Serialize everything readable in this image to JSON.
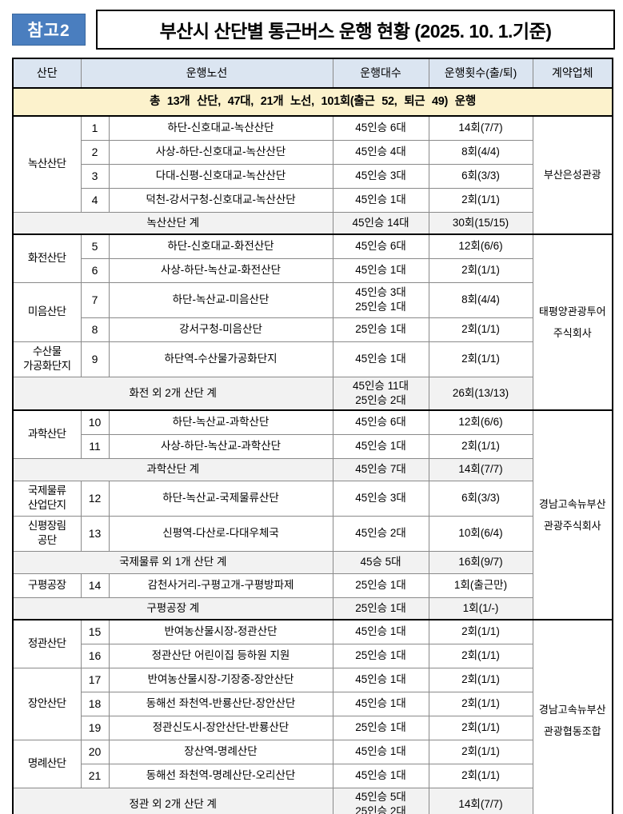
{
  "badge": "참고2",
  "title": "부산시 산단별 통근버스 운행 현황 (2025. 10. 1.기준)",
  "colors": {
    "badge_bg": "#4a7ebf",
    "header_bg": "#dbe5f1",
    "summary_bg": "#fcf2cc",
    "subtotal_bg": "#f2f2f2"
  },
  "table": {
    "headers": [
      "산단",
      "운행노선",
      "운행대수",
      "운행횟수(출/퇴)",
      "계약업체"
    ],
    "summary": "총 13개 산단, 47대, 21개 노선, 101회(출근 52, 퇴근 49) 운행",
    "contract_groups": [
      {
        "contractor": "부산은성관광",
        "blocks": [
          {
            "section": "녹산산단",
            "routes": [
              {
                "no": "1",
                "route": "하단-신호대교-녹산산단",
                "buses": "45인승 6대",
                "trips": "14회(7/7)"
              },
              {
                "no": "2",
                "route": "사상-하단-신호대교-녹산산단",
                "buses": "45인승 4대",
                "trips": "8회(4/4)"
              },
              {
                "no": "3",
                "route": "다대-신평-신호대교-녹산산단",
                "buses": "45인승 3대",
                "trips": "6회(3/3)"
              },
              {
                "no": "4",
                "route": "덕천-강서구청-신호대교-녹산산단",
                "buses": "45인승 1대",
                "trips": "2회(1/1)"
              }
            ]
          },
          {
            "subtotal": {
              "label": "녹산산단 계",
              "buses": "45인승 14대",
              "trips": "30회(15/15)"
            }
          }
        ]
      },
      {
        "contractor": "태평양관광투어\n주식회사",
        "blocks": [
          {
            "section": "화전산단",
            "routes": [
              {
                "no": "5",
                "route": "하단-신호대교-화전산단",
                "buses": "45인승 6대",
                "trips": "12회(6/6)"
              },
              {
                "no": "6",
                "route": "사상-하단-녹산교-화전산단",
                "buses": "45인승 1대",
                "trips": "2회(1/1)"
              }
            ]
          },
          {
            "section": "미음산단",
            "routes": [
              {
                "no": "7",
                "route": "하단-녹산교-미음산단",
                "buses": "45인승 3대\n25인승 1대",
                "trips": "8회(4/4)"
              },
              {
                "no": "8",
                "route": "강서구청-미음산단",
                "buses": "25인승 1대",
                "trips": "2회(1/1)"
              }
            ]
          },
          {
            "section": "수산물\n가공화단지",
            "routes": [
              {
                "no": "9",
                "route": "하단역-수산물가공화단지",
                "buses": "45인승 1대",
                "trips": "2회(1/1)"
              }
            ]
          },
          {
            "subtotal": {
              "label": "화전 외 2개 산단 계",
              "buses": "45인승 11대\n25인승 2대",
              "trips": "26회(13/13)"
            }
          }
        ]
      },
      {
        "contractor": "경남고속뉴부산\n관광주식회사",
        "blocks": [
          {
            "section": "과학산단",
            "routes": [
              {
                "no": "10",
                "route": "하단-녹산교-과학산단",
                "buses": "45인승 6대",
                "trips": "12회(6/6)"
              },
              {
                "no": "11",
                "route": "사상-하단-녹산교-과학산단",
                "buses": "45인승 1대",
                "trips": "2회(1/1)"
              }
            ]
          },
          {
            "subtotal": {
              "label": "과학산단 계",
              "buses": "45인승 7대",
              "trips": "14회(7/7)"
            }
          },
          {
            "section": "국제물류\n산업단지",
            "routes": [
              {
                "no": "12",
                "route": "하단-녹산교-국제물류산단",
                "buses": "45인승 3대",
                "trips": "6회(3/3)"
              }
            ]
          },
          {
            "section": "신평장림\n공단",
            "routes": [
              {
                "no": "13",
                "route": "신평역-다산로-다대우체국",
                "buses": "45인승 2대",
                "trips": "10회(6/4)"
              }
            ]
          },
          {
            "subtotal": {
              "label": "국제물류 외 1개 산단 계",
              "buses": "45승 5대",
              "trips": "16회(9/7)"
            }
          },
          {
            "section": "구평공장",
            "routes": [
              {
                "no": "14",
                "route": "감천사거리-구평고개-구평방파제",
                "buses": "25인승 1대",
                "trips": "1회(출근만)"
              }
            ]
          },
          {
            "subtotal": {
              "label": "구평공장 계",
              "buses": "25인승 1대",
              "trips": "1회(1/-)"
            }
          }
        ]
      },
      {
        "contractor": "경남고속뉴부산\n관광협동조합",
        "blocks": [
          {
            "section": "정관산단",
            "routes": [
              {
                "no": "15",
                "route": "반여농산물시장-정관산단",
                "buses": "45인승 1대",
                "trips": "2회(1/1)"
              },
              {
                "no": "16",
                "route": "정관산단 어린이집 등하원 지원",
                "buses": "25인승 1대",
                "trips": "2회(1/1)"
              }
            ]
          },
          {
            "section": "장안산단",
            "routes": [
              {
                "no": "17",
                "route": "반여농산물시장-기장중-장안산단",
                "buses": "45인승 1대",
                "trips": "2회(1/1)"
              },
              {
                "no": "18",
                "route": "동해선 좌천역-반룡산단-장안산단",
                "buses": "45인승 1대",
                "trips": "2회(1/1)"
              },
              {
                "no": "19",
                "route": "정관신도시-장안산단-반룡산단",
                "buses": "25인승 1대",
                "trips": "2회(1/1)"
              }
            ]
          },
          {
            "section": "명례산단",
            "routes": [
              {
                "no": "20",
                "route": "장산역-명례산단",
                "buses": "45인승 1대",
                "trips": "2회(1/1)"
              },
              {
                "no": "21",
                "route": "동해선 좌천역-명례산단-오리산단",
                "buses": "45인승 1대",
                "trips": "2회(1/1)"
              }
            ]
          },
          {
            "subtotal": {
              "label": "정관 외 2개 산단 계",
              "buses": "45인승 5대\n25인승 2대",
              "trips": "14회(7/7)"
            }
          }
        ]
      }
    ]
  }
}
